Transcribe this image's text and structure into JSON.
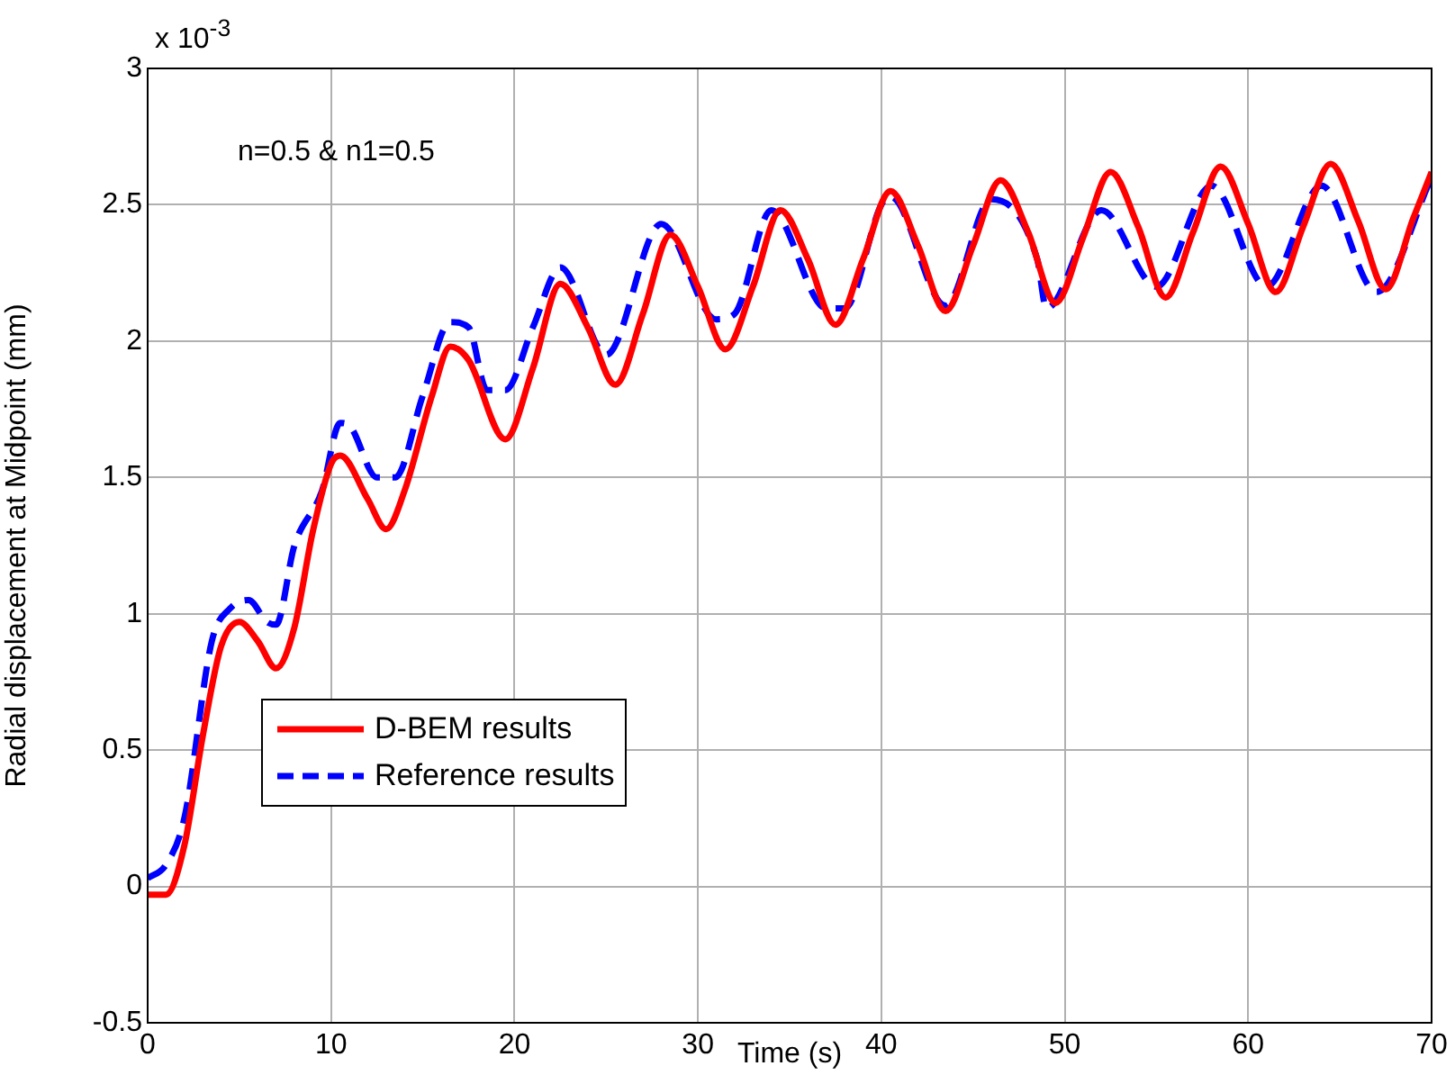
{
  "chart_data": {
    "type": "line",
    "xlabel": "Time (s)",
    "ylabel": "Radial displacement at Midpoint (mm)",
    "annotations": [
      "x 10$^{-3}$",
      "n=0.5 & n1=0.5"
    ],
    "xlim": [
      0,
      70
    ],
    "xticks": [
      0,
      10,
      20,
      30,
      40,
      50,
      60,
      70
    ],
    "ylim": [
      -0.5,
      3
    ],
    "yticks": [
      -0.5,
      0,
      0.5,
      1,
      1.5,
      2,
      2.5,
      3
    ],
    "grid": true,
    "legend": "bottom left",
    "marker": "none",
    "series": [
      {
        "name": "D-BEM results",
        "color": "#ff0000",
        "line_style": "solid",
        "x": [
          0,
          1,
          2,
          3,
          4,
          5,
          6,
          7,
          8,
          9,
          10,
          10.5,
          12,
          13,
          14,
          15.5,
          16.5,
          17.5,
          19.5,
          21,
          22.5,
          24,
          25.5,
          27,
          28.5,
          30,
          31.5,
          33,
          34.5,
          36,
          37.5,
          39,
          40.5,
          42,
          43.5,
          45,
          46.5,
          48,
          49.5,
          51,
          52.5,
          54,
          55.5,
          57,
          58.5,
          60,
          61.5,
          63,
          64.5,
          66,
          67.5,
          69,
          70
        ],
        "values": [
          -0.03,
          -0.03,
          0.15,
          0.55,
          0.88,
          0.97,
          0.9,
          0.8,
          0.95,
          1.3,
          1.55,
          1.58,
          1.42,
          1.31,
          1.45,
          1.8,
          1.98,
          1.93,
          1.64,
          1.9,
          2.21,
          2.05,
          1.84,
          2.1,
          2.39,
          2.2,
          1.97,
          2.2,
          2.48,
          2.3,
          2.06,
          2.3,
          2.55,
          2.35,
          2.11,
          2.35,
          2.59,
          2.4,
          2.14,
          2.38,
          2.62,
          2.42,
          2.16,
          2.4,
          2.64,
          2.43,
          2.18,
          2.42,
          2.65,
          2.44,
          2.19,
          2.45,
          2.62
        ]
      },
      {
        "name": "Reference results",
        "color": "#0000ff",
        "line_style": "dashed",
        "x": [
          0,
          1,
          2,
          3.5,
          4.5,
          5.5,
          6.5,
          7,
          8,
          9.5,
          10.5,
          11,
          12.5,
          13.5,
          15,
          16.5,
          17.5,
          18.5,
          19.5,
          21,
          22.5,
          25,
          28,
          31,
          32,
          34,
          37,
          38,
          40,
          40.5,
          43.5,
          46,
          48.5,
          49,
          52,
          55,
          58,
          61,
          64,
          67,
          70
        ],
        "values": [
          0.03,
          0.08,
          0.25,
          0.9,
          1.02,
          1.05,
          0.97,
          0.96,
          1.25,
          1.45,
          1.7,
          1.69,
          1.5,
          1.5,
          1.8,
          2.07,
          2.05,
          1.82,
          1.82,
          2.05,
          2.27,
          1.95,
          2.43,
          2.08,
          2.1,
          2.48,
          2.12,
          2.12,
          2.5,
          2.53,
          2.13,
          2.52,
          2.3,
          2.12,
          2.48,
          2.2,
          2.57,
          2.2,
          2.57,
          2.18,
          2.6
        ]
      }
    ]
  }
}
